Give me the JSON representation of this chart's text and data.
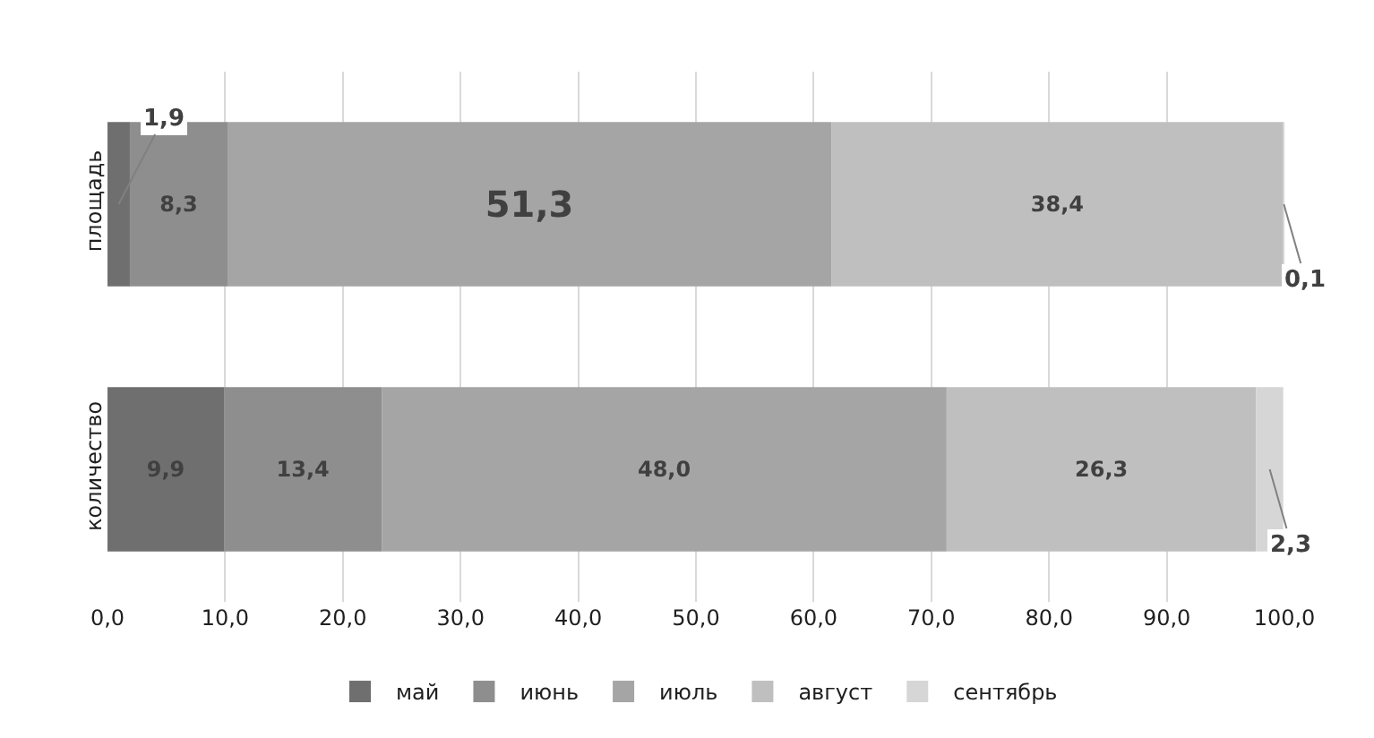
{
  "chart_data": {
    "type": "bar",
    "orientation": "horizontal",
    "stacked": true,
    "categories": [
      "площадь",
      "количество"
    ],
    "series": [
      {
        "name": "май",
        "color": "#6f6f6f",
        "values": [
          1.9,
          9.9
        ],
        "value_labels": [
          "1,9",
          "9,9"
        ]
      },
      {
        "name": "июнь",
        "color": "#8e8e8e",
        "values": [
          8.3,
          13.4
        ],
        "value_labels": [
          "8,3",
          "13,4"
        ]
      },
      {
        "name": "июль",
        "color": "#a5a5a5",
        "values": [
          51.3,
          48.0
        ],
        "value_labels": [
          "51,3",
          "48,0"
        ]
      },
      {
        "name": "август",
        "color": "#bfbfbf",
        "values": [
          38.4,
          26.3
        ],
        "value_labels": [
          "38,4",
          "26,3"
        ]
      },
      {
        "name": "сентябрь",
        "color": "#d6d6d6",
        "values": [
          0.1,
          2.3
        ],
        "value_labels": [
          "0,1",
          "2,3"
        ]
      }
    ],
    "xlim": [
      0,
      100
    ],
    "xticks": [
      {
        "value": 0,
        "label": "0,0"
      },
      {
        "value": 10,
        "label": "10,0"
      },
      {
        "value": 20,
        "label": "20,0"
      },
      {
        "value": 30,
        "label": "30,0"
      },
      {
        "value": 40,
        "label": "40,0"
      },
      {
        "value": 50,
        "label": "50,0"
      },
      {
        "value": 60,
        "label": "60,0"
      },
      {
        "value": 70,
        "label": "70,0"
      },
      {
        "value": 80,
        "label": "80,0"
      },
      {
        "value": 90,
        "label": "90,0"
      },
      {
        "value": 100,
        "label": "100,0"
      }
    ],
    "grid": "x",
    "legend": "bottom"
  }
}
